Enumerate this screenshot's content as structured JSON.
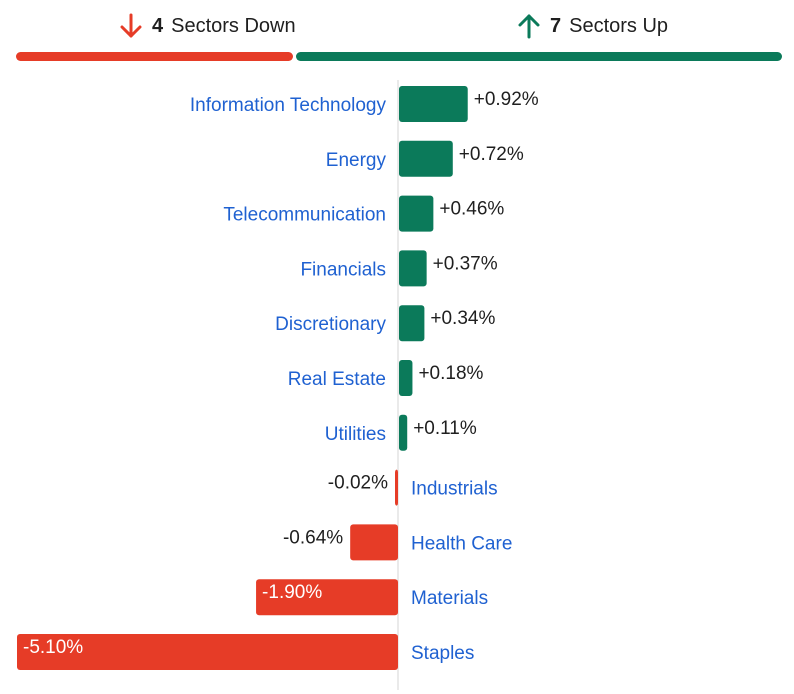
{
  "summary": {
    "down": {
      "count": "4",
      "label": "Sectors Down",
      "color": "#e63c27",
      "icon": "arrow-down-icon"
    },
    "up": {
      "count": "7",
      "label": "Sectors Up",
      "color": "#0b7a5a",
      "icon": "arrow-up-icon"
    }
  },
  "chart_data": {
    "type": "bar",
    "orientation": "horizontal",
    "categories": [
      "Information Technology",
      "Energy",
      "Telecommunication",
      "Financials",
      "Discretionary",
      "Real Estate",
      "Utilities",
      "Industrials",
      "Health Care",
      "Materials",
      "Staples"
    ],
    "values": [
      0.92,
      0.72,
      0.46,
      0.37,
      0.34,
      0.18,
      0.11,
      -0.02,
      -0.64,
      -1.9,
      -5.1
    ],
    "labels": [
      "+0.92%",
      "+0.72%",
      "+0.46%",
      "+0.37%",
      "+0.34%",
      "+0.18%",
      "+0.11%",
      "-0.02%",
      "-0.64%",
      "-1.90%",
      "-5.10%"
    ],
    "positive_color": "#0b7a5a",
    "negative_color": "#e63c27",
    "label_color": "#1f61d1",
    "xlim": [
      -5.1,
      5.1
    ],
    "grid": false
  }
}
